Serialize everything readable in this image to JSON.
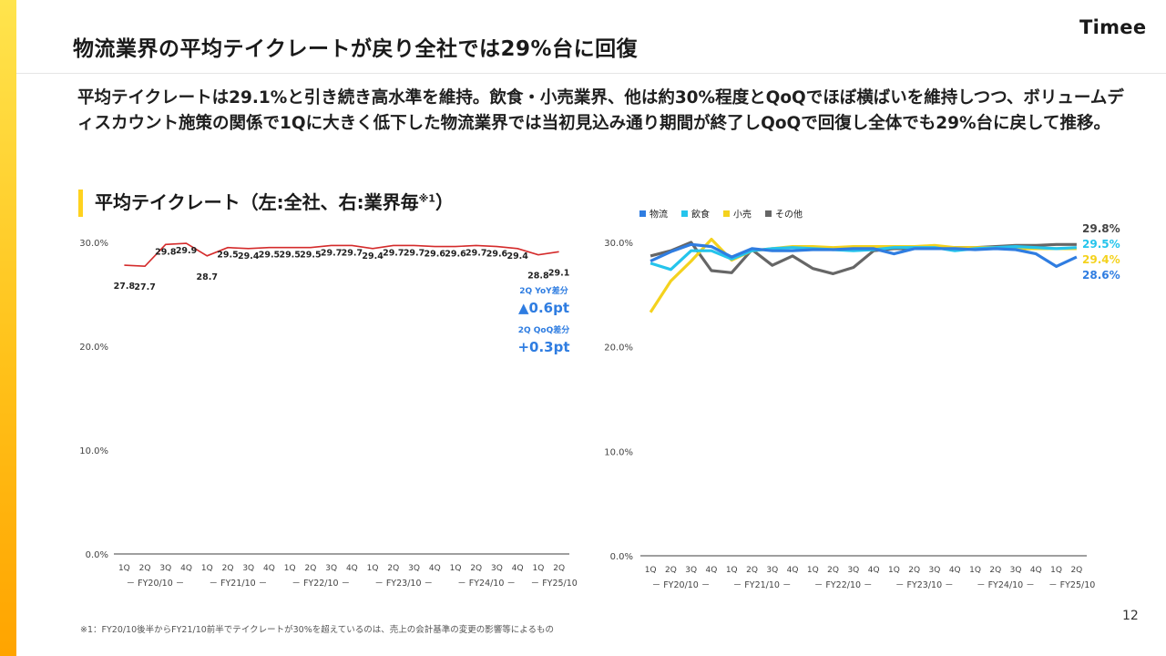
{
  "header": {
    "title": "物流業界の平均テイクレートが戻り全社では29%台に回復",
    "logo": "Timee"
  },
  "lead_text": "平均テイクレートは29.1%と引き続き高水準を維持。飲食・小売業界、他は約30%程度とQoQでほぼ横ばいを維持しつつ、ボリュームディスカウント施策の関係で1Qに大きく低下した物流業界では当初見込み通り期間が終了しQoQで回復し全体でも29%台に戻して推移。",
  "section": {
    "title": "平均テイクレート（左:全社、右:業界毎",
    "sup": "※1",
    "close": "）"
  },
  "footnote": "※1：FY20/10後半からFY21/10前半でテイクレートが30%を超えているのは、売上の会計基準の変更の影響等によるもの",
  "page_number": "12",
  "chart_data": [
    {
      "type": "line",
      "categories": [
        "1Q",
        "2Q",
        "3Q",
        "4Q",
        "1Q",
        "2Q",
        "3Q",
        "4Q",
        "1Q",
        "2Q",
        "3Q",
        "4Q",
        "1Q",
        "2Q",
        "3Q",
        "4Q",
        "1Q",
        "2Q",
        "3Q",
        "4Q",
        "1Q",
        "2Q"
      ],
      "fiscal_years": [
        "FY20/10",
        "FY21/10",
        "FY22/10",
        "FY23/10",
        "FY24/10",
        "FY25/10"
      ],
      "y_ticks": [
        "0.0%",
        "10.0%",
        "20.0%",
        "30.0%"
      ],
      "ylim": [
        0,
        30
      ],
      "series": [
        {
          "color": "#d42b2b",
          "values": [
            27.8,
            27.7,
            29.8,
            29.9,
            28.7,
            29.5,
            29.4,
            29.5,
            29.5,
            29.5,
            29.7,
            29.7,
            29.4,
            29.7,
            29.7,
            29.6,
            29.6,
            29.7,
            29.6,
            29.4,
            28.8,
            29.1
          ],
          "labels": [
            "27.8",
            "27.7",
            "29.8",
            "29.9",
            "28.7",
            "29.5",
            "29.4",
            "29.5",
            "29.5",
            "29.5",
            "29.7",
            "29.7",
            "29.4",
            "29.7",
            "29.7",
            "29.6",
            "29.6",
            "29.7",
            "29.6",
            "29.4",
            "28.8",
            "29.1"
          ]
        }
      ],
      "annotations": [
        {
          "label": "2Q YoY差分",
          "value": "▲0.6pt"
        },
        {
          "label": "2Q QoQ差分",
          "value": "+0.3pt"
        }
      ]
    },
    {
      "type": "line",
      "categories": [
        "1Q",
        "2Q",
        "3Q",
        "4Q",
        "1Q",
        "2Q",
        "3Q",
        "4Q",
        "1Q",
        "2Q",
        "3Q",
        "4Q",
        "1Q",
        "2Q",
        "3Q",
        "4Q",
        "1Q",
        "2Q",
        "3Q",
        "4Q",
        "1Q",
        "2Q"
      ],
      "fiscal_years": [
        "FY20/10",
        "FY21/10",
        "FY22/10",
        "FY23/10",
        "FY24/10",
        "FY25/10"
      ],
      "y_ticks": [
        "0.0%",
        "10.0%",
        "20.0%",
        "30.0%"
      ],
      "ylim": [
        0,
        30
      ],
      "legend_position": "top-left",
      "series": [
        {
          "name": "物流",
          "color": "#2f7de1",
          "values": [
            28.2,
            29.1,
            29.8,
            29.6,
            28.6,
            29.4,
            29.2,
            29.2,
            29.3,
            29.3,
            29.4,
            29.4,
            28.9,
            29.4,
            29.4,
            29.4,
            29.3,
            29.4,
            29.3,
            28.9,
            27.7,
            28.6
          ],
          "end_label": "28.6%"
        },
        {
          "name": "飲食",
          "color": "#25c4ec",
          "values": [
            28.0,
            27.4,
            29.2,
            29.2,
            28.4,
            29.2,
            29.4,
            29.5,
            29.4,
            29.3,
            29.2,
            29.3,
            29.5,
            29.5,
            29.5,
            29.2,
            29.4,
            29.5,
            29.6,
            29.5,
            29.4,
            29.5
          ],
          "end_label": "29.5%"
        },
        {
          "name": "小売",
          "color": "#f4d21e",
          "values": [
            23.3,
            26.3,
            28.2,
            30.3,
            28.3,
            29.2,
            29.4,
            29.6,
            29.6,
            29.5,
            29.6,
            29.6,
            29.6,
            29.6,
            29.7,
            29.5,
            29.5,
            29.5,
            29.4,
            29.4,
            29.4,
            29.4
          ],
          "end_label": "29.4%"
        },
        {
          "name": "その他",
          "color": "#666666",
          "values": [
            28.7,
            29.2,
            30.0,
            27.3,
            27.1,
            29.3,
            27.8,
            28.7,
            27.5,
            27.0,
            27.6,
            29.2,
            29.4,
            29.4,
            29.5,
            29.5,
            29.5,
            29.6,
            29.7,
            29.7,
            29.8,
            29.8
          ],
          "end_label": "29.8%"
        }
      ]
    }
  ]
}
